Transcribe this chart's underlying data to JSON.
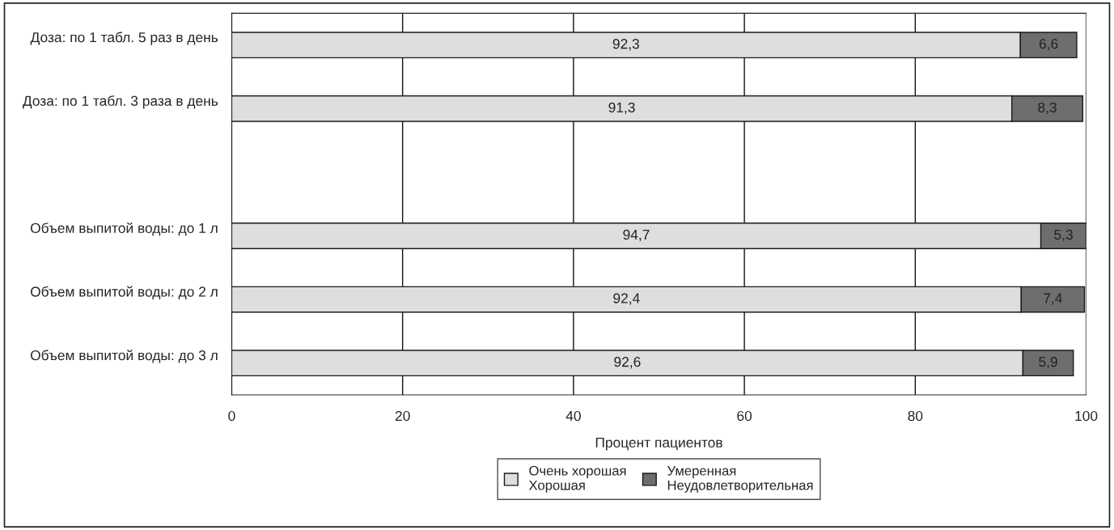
{
  "chart_data": {
    "type": "bar",
    "orientation": "horizontal",
    "stacked": true,
    "xlabel": "Процент пациентов",
    "categories": [
      "Доза: по 1 табл. 5 раз в день",
      "Доза: по 1 табл. 3 раза в день",
      null,
      "Объем выпитой воды: до 1 л",
      "Объем выпитой воды: до 2 л",
      "Объем выпитой воды: до 3 л"
    ],
    "series": [
      {
        "name": "Очень хорошая\nХорошая",
        "color": "#dcdedf",
        "values": [
          92.3,
          91.3,
          null,
          94.7,
          92.4,
          92.6
        ],
        "value_labels": [
          "92,3",
          "91,3",
          null,
          "94,7",
          "92,4",
          "92,6"
        ]
      },
      {
        "name": "Умеренная\nНеудовлетворительная",
        "color": "#6d6e70",
        "values": [
          6.6,
          8.3,
          null,
          5.3,
          7.4,
          5.9
        ],
        "value_labels": [
          "6,6",
          "8,3",
          null,
          "5,3",
          "7,4",
          "5,9"
        ]
      }
    ],
    "xlim": [
      0,
      100
    ],
    "xticks": [
      0,
      20,
      40,
      60,
      80,
      100
    ],
    "grid": "x",
    "legend": "bottom"
  }
}
